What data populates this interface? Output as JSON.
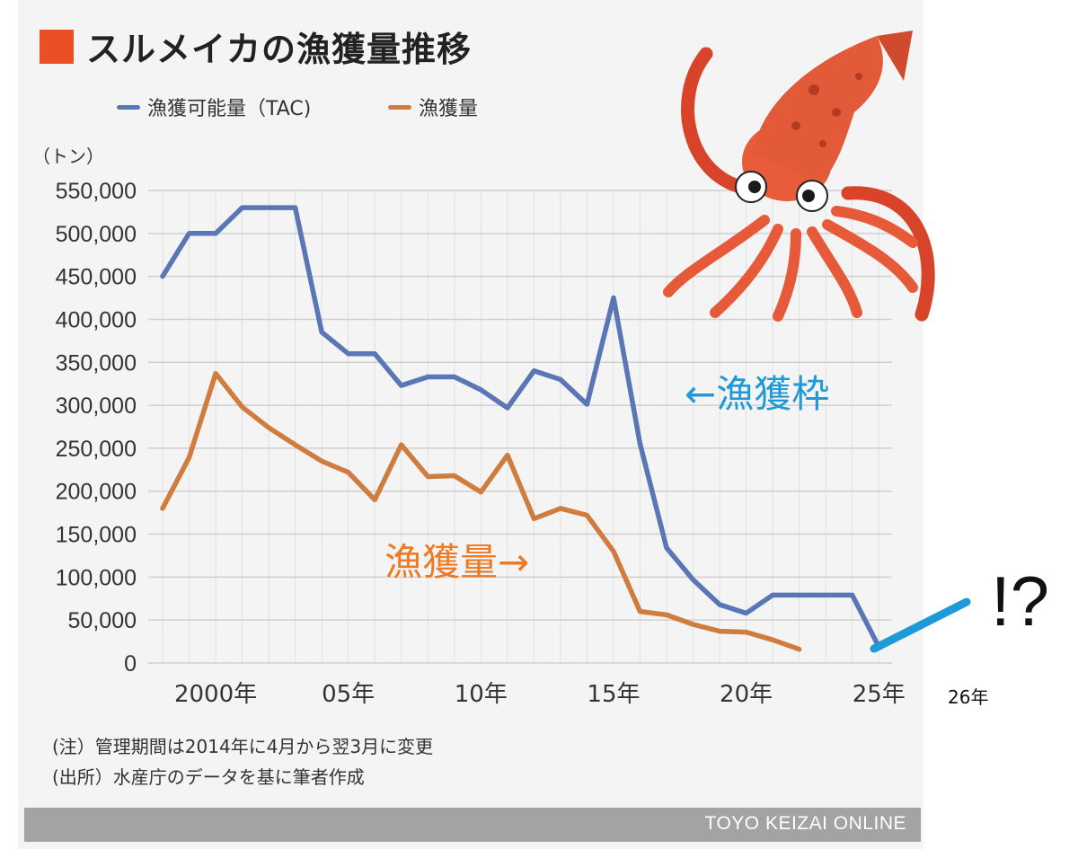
{
  "title": "スルメイカの漁獲量推移",
  "unit": "（トン）",
  "notes": {
    "note1": "(注）管理期間は2014年に4月から翌3月に変更",
    "note2": "(出所）水産庁のデータを基に筆者作成"
  },
  "footer": "TOYO KEIZAI ONLINE",
  "annotations": {
    "tac_label": "←漁獲枠",
    "catch_label": "漁獲量→",
    "year26": "26年",
    "exclaim": "!?"
  },
  "colors": {
    "tac": "#5b76b5",
    "catch": "#d07c3e",
    "title_mark": "#ea4f25",
    "annotation_blue": "#1f9ad6",
    "annotation_orange": "#ee7a22",
    "grid": "#cfcfcf"
  },
  "illustration": {
    "icon": "squid-illustration"
  },
  "chart_data": {
    "type": "line",
    "ylim": [
      0,
      550000
    ],
    "xlim": [
      1998,
      2025
    ],
    "yticks": [
      0,
      50000,
      100000,
      150000,
      200000,
      250000,
      300000,
      350000,
      400000,
      450000,
      500000,
      550000
    ],
    "ytick_labels": [
      "0",
      "50,000",
      "100,000",
      "150,000",
      "200,000",
      "250,000",
      "300,000",
      "350,000",
      "400,000",
      "450,000",
      "500,000",
      "550,000"
    ],
    "xticks": [
      2000,
      2005,
      2010,
      2015,
      2020,
      2025
    ],
    "xtick_labels": [
      "2000年",
      "05年",
      "10年",
      "15年",
      "20年",
      "25年"
    ],
    "grid": true,
    "legend_position": "top",
    "series": [
      {
        "name": "漁獲可能量（TAC)",
        "x": [
          1998,
          1999,
          2000,
          2001,
          2002,
          2003,
          2004,
          2005,
          2006,
          2007,
          2008,
          2009,
          2010,
          2011,
          2012,
          2013,
          2014,
          2015,
          2016,
          2017,
          2018,
          2019,
          2020,
          2021,
          2022,
          2023,
          2024,
          2025
        ],
        "values": [
          450000,
          500000,
          500000,
          530000,
          530000,
          530000,
          385000,
          360000,
          360000,
          323000,
          333000,
          333000,
          318000,
          297000,
          340000,
          330000,
          301000,
          425000,
          255000,
          134000,
          97000,
          68000,
          58000,
          79000,
          79000,
          79000,
          79000,
          19000
        ]
      },
      {
        "name": "漁獲量",
        "x": [
          1998,
          1999,
          2000,
          2001,
          2002,
          2003,
          2004,
          2005,
          2006,
          2007,
          2008,
          2009,
          2010,
          2011,
          2012,
          2013,
          2014,
          2015,
          2016,
          2017,
          2018,
          2019,
          2020,
          2021,
          2022
        ],
        "values": [
          180000,
          239000,
          337000,
          298000,
          274000,
          254000,
          235000,
          222000,
          190000,
          254000,
          217000,
          218000,
          199000,
          242000,
          168000,
          180000,
          172000,
          130000,
          60000,
          56000,
          45000,
          37000,
          36000,
          27000,
          16000
        ]
      }
    ]
  }
}
